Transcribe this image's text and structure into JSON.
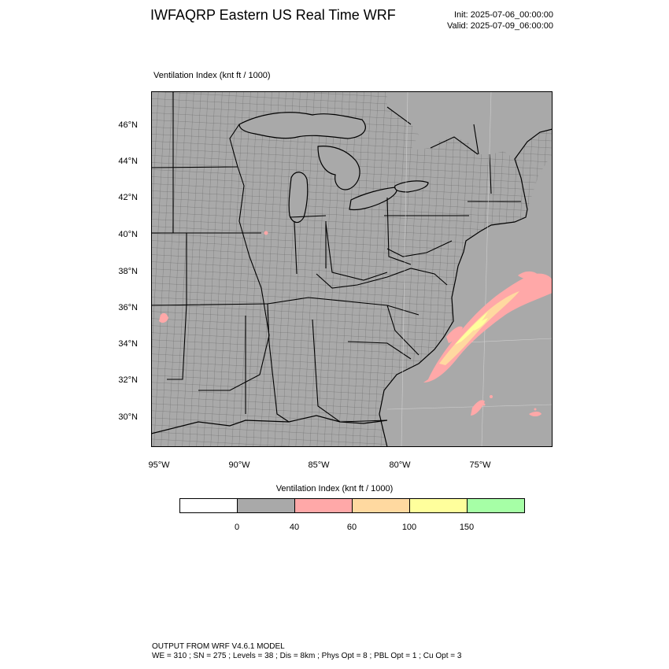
{
  "header": {
    "title": "IWFAQRP Eastern US Real Time WRF",
    "init": "Init: 2025-07-06_00:00:00",
    "valid": "Valid: 2025-07-09_06:00:00"
  },
  "map": {
    "subtitle": "Ventilation Index   (knt ft / 1000)",
    "lat_ticks": [
      "46°N",
      "44°N",
      "42°N",
      "40°N",
      "38°N",
      "36°N",
      "34°N",
      "32°N",
      "30°N"
    ],
    "lon_ticks": [
      "95°W",
      "90°W",
      "85°W",
      "80°W",
      "75°W"
    ],
    "colors": {
      "land_fill": "#a9a9a9",
      "water_fill": "#a9a9a9",
      "low_band": "#ffa8a8",
      "mid_band": "#ffd9a0",
      "high_band": "#ffff9c"
    }
  },
  "legend": {
    "title": "Ventilation Index  (knt ft / 1000)",
    "bins": [
      {
        "color": "#ffffff"
      },
      {
        "color": "#a9a9a9"
      },
      {
        "color": "#ffa8a8"
      },
      {
        "color": "#ffd9a0"
      },
      {
        "color": "#ffff9c"
      },
      {
        "color": "#a6ffa6"
      }
    ],
    "labels": [
      "0",
      "40",
      "60",
      "100",
      "150"
    ]
  },
  "footer": {
    "line1": "OUTPUT FROM WRF V4.6.1 MODEL",
    "line2": "WE = 310 ; SN = 275 ; Levels = 38 ; Dis = 8km ; Phys Opt = 8 ; PBL Opt = 1 ; Cu Opt = 3"
  }
}
